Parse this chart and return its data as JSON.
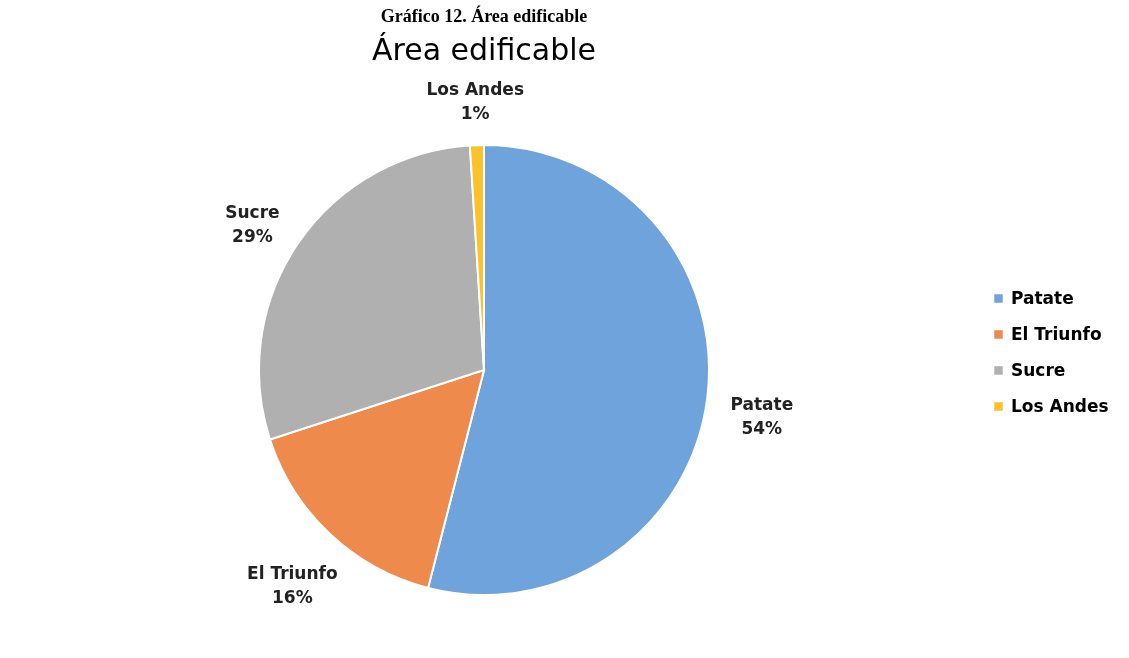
{
  "chart_data": {
    "type": "pie",
    "title": "Área edificable",
    "annotations": [
      "Gráfico 12. Área edificable"
    ],
    "categories": [
      "Patate",
      "El Triunfo",
      "Sucre",
      "Los Andes"
    ],
    "values": [
      54,
      16,
      29,
      1
    ],
    "colors": [
      "#6fa3dc",
      "#ee8a4c",
      "#b0b0b0",
      "#fdc12a"
    ],
    "value_labels": [
      "54%",
      "16%",
      "29%",
      "1%"
    ],
    "legend": "right"
  }
}
